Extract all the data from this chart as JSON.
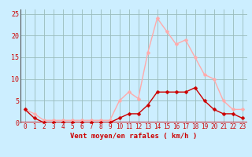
{
  "x": [
    0,
    1,
    2,
    3,
    4,
    5,
    6,
    7,
    8,
    9,
    10,
    11,
    12,
    13,
    14,
    15,
    16,
    17,
    18,
    19,
    20,
    21,
    22,
    23
  ],
  "moyen": [
    3,
    1,
    0,
    0,
    0,
    0,
    0,
    0,
    0,
    0,
    1,
    2,
    2,
    4,
    7,
    7,
    7,
    7,
    8,
    5,
    3,
    2,
    2,
    1
  ],
  "rafales": [
    3,
    2,
    0.5,
    0.5,
    0.5,
    0.5,
    0.5,
    0.5,
    0.5,
    0.5,
    5,
    7,
    5.5,
    16,
    24,
    21,
    18,
    19,
    15,
    11,
    10,
    5,
    3,
    3
  ],
  "xlabel": "Vent moyen/en rafales ( km/h )",
  "ylim": [
    0,
    26
  ],
  "xlim_min": -0.5,
  "xlim_max": 23.5,
  "yticks": [
    0,
    5,
    10,
    15,
    20,
    25
  ],
  "xticks": [
    0,
    1,
    2,
    3,
    4,
    5,
    6,
    7,
    8,
    9,
    10,
    11,
    12,
    13,
    14,
    15,
    16,
    17,
    18,
    19,
    20,
    21,
    22,
    23
  ],
  "color_moyen": "#cc0000",
  "color_rafales": "#ffaaaa",
  "bg_color": "#cceeff",
  "grid_color": "#99bbbb",
  "marker_size": 2.5,
  "line_width": 1.0,
  "tick_fontsize": 5.5,
  "xlabel_fontsize": 6.5
}
